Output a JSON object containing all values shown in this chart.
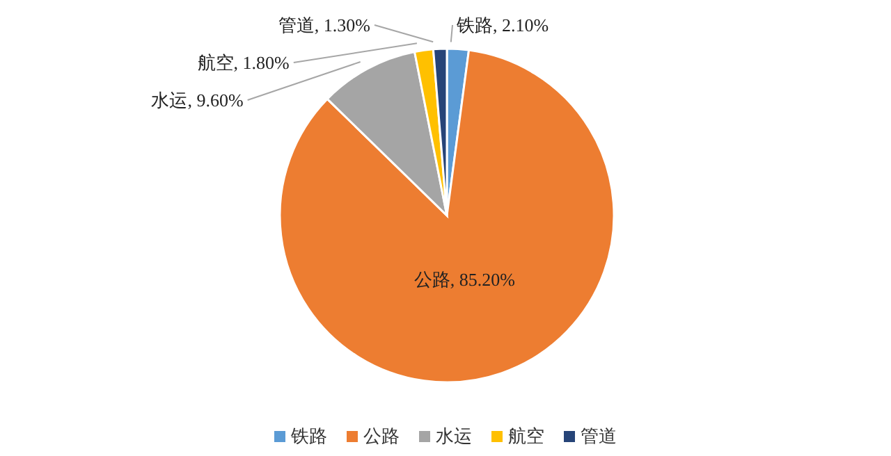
{
  "chart_data": {
    "type": "pie",
    "categories": [
      "铁路",
      "公路",
      "水运",
      "航空",
      "管道"
    ],
    "values": [
      2.1,
      85.2,
      9.6,
      1.8,
      1.3
    ],
    "colors": [
      "#5b9bd5",
      "#ed7d31",
      "#a5a5a5",
      "#ffc000",
      "#264478"
    ],
    "value_labels": [
      "铁路, 2.10%",
      "公路, 85.20%",
      "水运, 9.60%",
      "航空, 1.80%",
      "管道, 1.30%"
    ],
    "legend": "bottom"
  }
}
